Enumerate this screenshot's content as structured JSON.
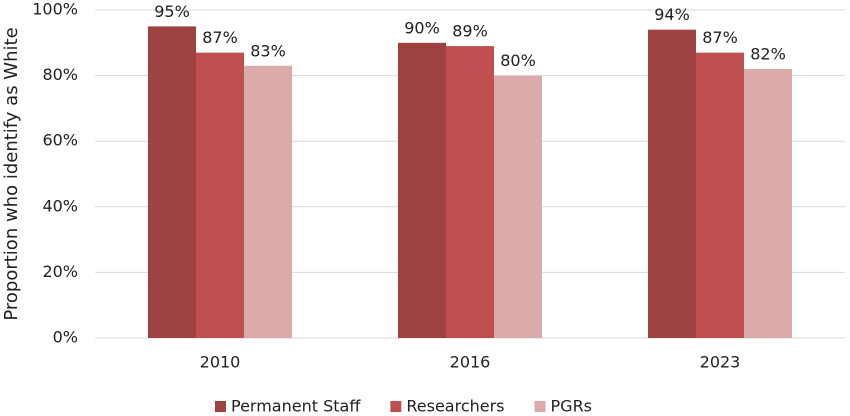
{
  "chart_data": {
    "type": "bar",
    "y_label": "Proportion who identify as White",
    "categories": [
      "2010",
      "2016",
      "2023"
    ],
    "series": [
      {
        "name": "Permanent Staff",
        "color": "#9e4141",
        "values": [
          95,
          90,
          94
        ],
        "value_labels": [
          "95%",
          "90%",
          "94%"
        ]
      },
      {
        "name": "Researchers",
        "color": "#c0504f",
        "values": [
          87,
          89,
          87
        ],
        "value_labels": [
          "87%",
          "89%",
          "87%"
        ]
      },
      {
        "name": "PGRs",
        "color": "#dbabab",
        "values": [
          83,
          80,
          82
        ],
        "value_labels": [
          "83%",
          "80%",
          "82%"
        ]
      }
    ],
    "ylim": [
      0,
      100
    ],
    "yticks": [
      {
        "value": 0,
        "label": "0%"
      },
      {
        "value": 20,
        "label": "20%"
      },
      {
        "value": 40,
        "label": "40%"
      },
      {
        "value": 60,
        "label": "60%"
      },
      {
        "value": 80,
        "label": "80%"
      },
      {
        "value": 100,
        "label": "100%"
      }
    ],
    "grid": true,
    "legend": "bottom"
  }
}
